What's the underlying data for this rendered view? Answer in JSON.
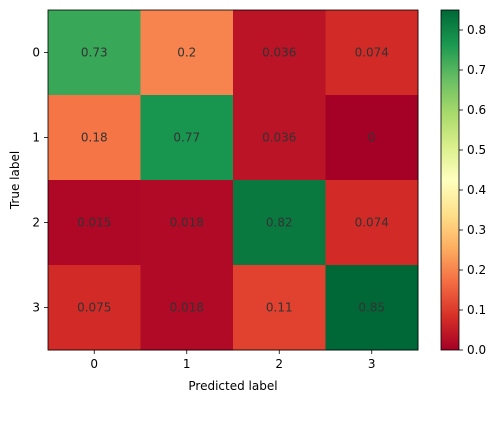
{
  "chart_data": {
    "type": "heatmap",
    "title": "",
    "xlabel": "Predicted label",
    "ylabel": "True label",
    "x_categories": [
      "0",
      "1",
      "2",
      "3"
    ],
    "y_categories": [
      "0",
      "1",
      "2",
      "3"
    ],
    "values": [
      [
        0.73,
        0.2,
        0.036,
        0.074
      ],
      [
        0.18,
        0.77,
        0.036,
        0
      ],
      [
        0.015,
        0.018,
        0.82,
        0.074
      ],
      [
        0.075,
        0.018,
        0.11,
        0.85
      ]
    ],
    "cell_labels": [
      [
        "0.73",
        "0.2",
        "0.036",
        "0.074"
      ],
      [
        "0.18",
        "0.77",
        "0.036",
        "0"
      ],
      [
        "0.015",
        "0.018",
        "0.82",
        "0.074"
      ],
      [
        "0.075",
        "0.018",
        "0.11",
        "0.85"
      ]
    ],
    "colormap": "RdYlGn",
    "vmin": 0,
    "vmax": 0.85,
    "colorbar_ticks": [
      "0.0",
      "0.1",
      "0.2",
      "0.3",
      "0.4",
      "0.5",
      "0.6",
      "0.7",
      "0.8"
    ],
    "colorbar_tick_values": [
      0,
      0.1,
      0.2,
      0.3,
      0.4,
      0.5,
      0.6,
      0.7,
      0.8
    ],
    "annotation_color": "#333333"
  }
}
